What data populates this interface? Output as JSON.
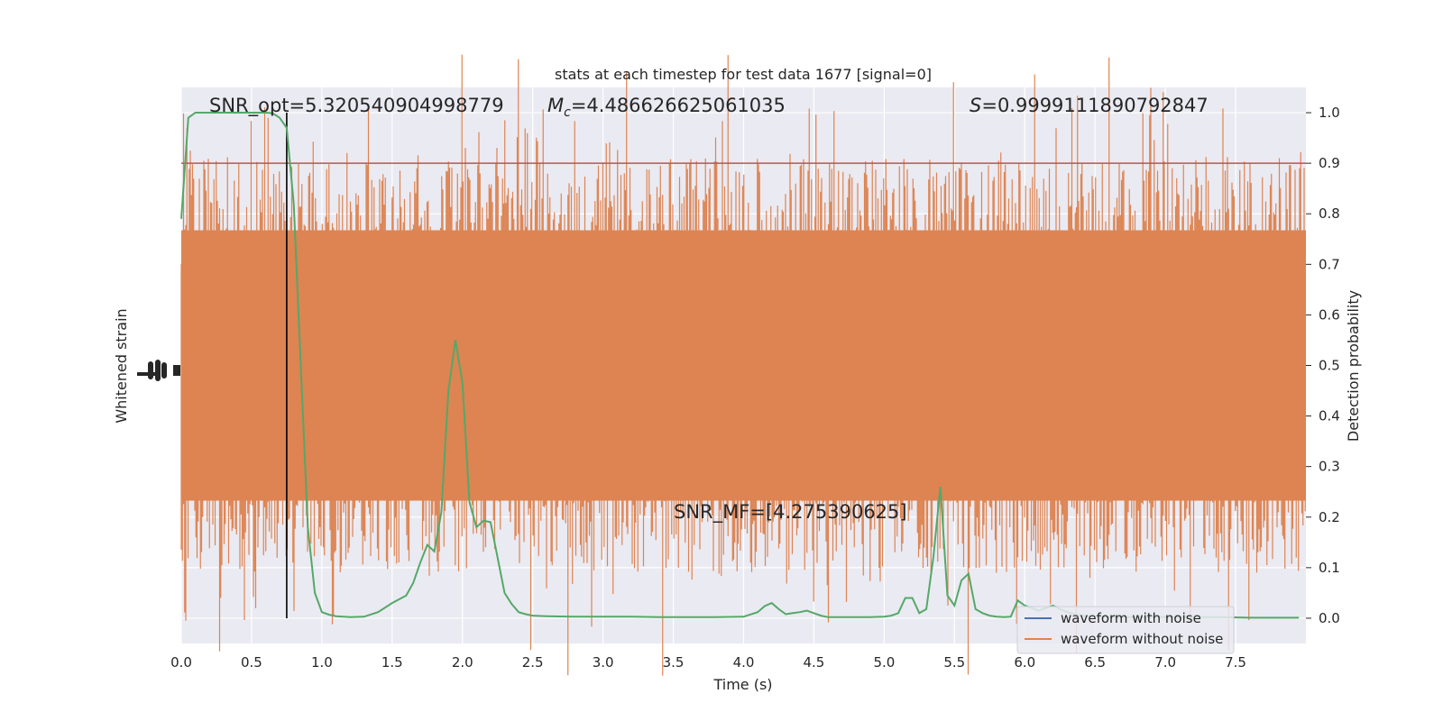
{
  "chart_data": {
    "type": "line",
    "title": "stats at each timestep for test data 1677 [signal=0]",
    "xlabel": "Time (s)",
    "ylabel_left": "Whitened strain",
    "ylabel_right": "Detection probability",
    "xlim": [
      0.0,
      8.0
    ],
    "ylim_right": [
      -0.05,
      1.05
    ],
    "x_ticks": [
      "0.0",
      "0.5",
      "1.0",
      "1.5",
      "2.0",
      "2.5",
      "3.0",
      "3.5",
      "4.0",
      "4.5",
      "5.0",
      "5.5",
      "6.0",
      "6.5",
      "7.0",
      "7.5"
    ],
    "x_tick_values": [
      0.0,
      0.5,
      1.0,
      1.5,
      2.0,
      2.5,
      3.0,
      3.5,
      4.0,
      4.5,
      5.0,
      5.5,
      6.0,
      6.5,
      7.0,
      7.5
    ],
    "y_right_ticks": [
      "0.0",
      "0.1",
      "0.2",
      "0.3",
      "0.4",
      "0.5",
      "0.6",
      "0.7",
      "0.8",
      "0.9",
      "1.0"
    ],
    "y_right_tick_values": [
      0.0,
      0.1,
      0.2,
      0.3,
      0.4,
      0.5,
      0.6,
      0.7,
      0.8,
      0.9,
      1.0
    ],
    "grid": true,
    "legend_position": "lower-right",
    "annotations": {
      "snr_opt": "SNR_opt=5.320540904998779",
      "mc_symbol": "M",
      "mc_sub": "c",
      "mc_value": "=4.486626625061035",
      "s_symbol": "S",
      "s_value": "=0.9999111890792847",
      "snr_mf": "SNR_MF=[4.275390625]"
    },
    "threshold": 0.9,
    "marker_time": 0.75,
    "series": [
      {
        "name": "waveform with noise",
        "color": "#4c72b0",
        "values": []
      },
      {
        "name": "waveform without noise",
        "color": "#dd8452",
        "band": "whitened strain noise trace filling the plot"
      },
      {
        "color": "#55a868",
        "x": [
          0.0,
          0.05,
          0.1,
          0.2,
          0.3,
          0.4,
          0.5,
          0.6,
          0.65,
          0.7,
          0.75,
          0.8,
          0.85,
          0.9,
          0.95,
          1.0,
          1.05,
          1.1,
          1.2,
          1.3,
          1.4,
          1.5,
          1.6,
          1.65,
          1.7,
          1.75,
          1.8,
          1.85,
          1.9,
          1.95,
          2.0,
          2.05,
          2.1,
          2.15,
          2.2,
          2.25,
          2.3,
          2.35,
          2.4,
          2.45,
          2.5,
          2.6,
          2.8,
          3.0,
          3.2,
          3.4,
          3.6,
          3.8,
          4.0,
          4.1,
          4.15,
          4.2,
          4.25,
          4.3,
          4.35,
          4.4,
          4.45,
          4.5,
          4.55,
          4.6,
          4.7,
          4.8,
          4.9,
          5.0,
          5.05,
          5.1,
          5.15,
          5.2,
          5.25,
          5.3,
          5.35,
          5.4,
          5.45,
          5.5,
          5.55,
          5.6,
          5.65,
          5.7,
          5.75,
          5.8,
          5.85,
          5.9,
          5.95,
          6.0,
          6.1,
          6.2,
          6.3,
          6.4,
          6.5,
          6.6,
          6.7,
          6.8,
          7.0,
          7.2,
          7.4,
          7.6,
          7.8,
          7.95
        ],
        "values": [
          0.79,
          0.99,
          1.0,
          1.0,
          1.0,
          1.0,
          1.0,
          1.0,
          0.999,
          0.99,
          0.97,
          0.82,
          0.5,
          0.18,
          0.05,
          0.012,
          0.007,
          0.004,
          0.002,
          0.003,
          0.012,
          0.03,
          0.045,
          0.07,
          0.11,
          0.145,
          0.132,
          0.21,
          0.45,
          0.55,
          0.465,
          0.23,
          0.18,
          0.193,
          0.19,
          0.12,
          0.05,
          0.028,
          0.012,
          0.008,
          0.005,
          0.004,
          0.003,
          0.003,
          0.003,
          0.002,
          0.002,
          0.002,
          0.003,
          0.012,
          0.024,
          0.03,
          0.018,
          0.008,
          0.01,
          0.012,
          0.015,
          0.01,
          0.005,
          0.002,
          0.002,
          0.002,
          0.002,
          0.003,
          0.005,
          0.01,
          0.04,
          0.04,
          0.01,
          0.018,
          0.12,
          0.26,
          0.045,
          0.025,
          0.075,
          0.088,
          0.018,
          0.01,
          0.005,
          0.003,
          0.002,
          0.003,
          0.035,
          0.025,
          0.015,
          0.025,
          0.012,
          0.005,
          0.003,
          0.002,
          0.002,
          0.002,
          0.002,
          0.002,
          0.002,
          0.001,
          0.001,
          0.001
        ]
      }
    ]
  },
  "colors": {
    "background": "#eaeaf2",
    "grid": "#ffffff",
    "strain": "#dd8452",
    "probability": "#55a868",
    "threshold": "#c44e52",
    "marker": "#000000"
  }
}
